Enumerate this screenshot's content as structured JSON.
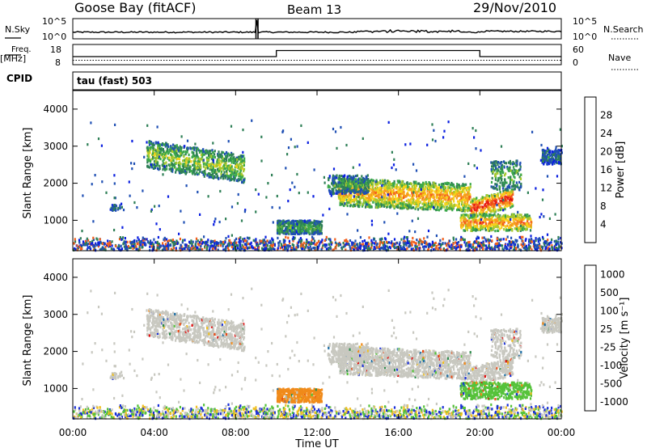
{
  "header": {
    "station": "Goose Bay (fitACF)",
    "beam": "Beam 13",
    "date": "29/Nov/2010"
  },
  "side_labels": {
    "nsky": "N.Sky",
    "nsearch": "N.Search",
    "freq": "Freq.",
    "freq_unit": "[MHz]",
    "nave": "Nave",
    "cpid": "CPID",
    "cpid_value": "tau (fast) 503"
  },
  "noise_axis": {
    "left_ticks": [
      "10^5",
      "10^0"
    ],
    "right_ticks": [
      "10^5",
      "10^0"
    ]
  },
  "freq_axis": {
    "left_ticks": [
      "18",
      "8"
    ],
    "right_ticks": [
      "60",
      "0"
    ]
  },
  "colors": {
    "power": [
      "#0a1fe0",
      "#1f4fb4",
      "#2e7f56",
      "#3aa84a",
      "#a5c82e",
      "#f7d21a",
      "#f79a1e",
      "#f25f1c",
      "#e81d14",
      "#e01010"
    ],
    "velocity": [
      "#1a2fd8",
      "#1e6fa6",
      "#2c8a4a",
      "#55c23a",
      "#c8c8c0",
      "#f0c022",
      "#f08a1a",
      "#ea4a14",
      "#e01010"
    ]
  },
  "chart_data": [
    {
      "type": "line",
      "name": "noise",
      "series": [
        {
          "name": "N.Sky",
          "description_points": [
            [
              0,
              1.2
            ],
            [
              9,
              1.3
            ],
            [
              9.02,
              5
            ],
            [
              9.1,
              0.5
            ],
            [
              10,
              1.2
            ],
            [
              20,
              1.2
            ],
            [
              20.05,
              1.6
            ],
            [
              24,
              1.2
            ]
          ]
        },
        {
          "name": "N.Search",
          "description_points": [
            [
              0,
              1.1
            ],
            [
              24,
              1.1
            ]
          ]
        }
      ],
      "x_range": [
        0,
        24
      ]
    },
    {
      "type": "line",
      "name": "frequency",
      "series": [
        {
          "name": "Freq.",
          "points": [
            [
              0,
              12
            ],
            [
              10,
              12
            ],
            [
              10,
              15
            ],
            [
              20,
              15
            ],
            [
              20,
              12
            ],
            [
              24,
              12
            ]
          ]
        },
        {
          "name": "Nave",
          "points": [
            [
              0,
              10
            ],
            [
              24,
              10
            ]
          ]
        }
      ],
      "y_range_left": [
        8,
        18
      ],
      "y_range_right": [
        0,
        60
      ]
    },
    {
      "type": "heatmap",
      "name": "power",
      "ylabel": "Slant Range [km]",
      "xlabel": "Time UT",
      "x_ticks": [
        "00:00",
        "04:00",
        "08:00",
        "12:00",
        "16:00",
        "20:00",
        "00:00"
      ],
      "y_ticks": [
        1000,
        2000,
        3000,
        4000
      ],
      "ylim": [
        180,
        4500
      ],
      "colorbar": {
        "label": "Power [dB]",
        "ticks": [
          4,
          8,
          12,
          16,
          20,
          24,
          28
        ]
      },
      "regions": [
        {
          "t0": 3.6,
          "t1": 8.4,
          "r0": 2200,
          "r1": 2900,
          "level": 0.45
        },
        {
          "t0": 10.0,
          "t1": 12.2,
          "r0": 620,
          "r1": 1000,
          "level": 0.35
        },
        {
          "t0": 13.0,
          "t1": 19.5,
          "r0": 1300,
          "r1": 2000,
          "level": 0.7
        },
        {
          "t0": 19.5,
          "t1": 21.5,
          "r0": 1200,
          "r1": 1600,
          "level": 0.9
        },
        {
          "t0": 19.0,
          "t1": 22.5,
          "r0": 700,
          "r1": 1100,
          "level": 0.75
        },
        {
          "t0": 23.0,
          "t1": 24.0,
          "r0": 2500,
          "r1": 2900,
          "level": 0.2
        }
      ]
    },
    {
      "type": "heatmap",
      "name": "velocity",
      "ylabel": "Slant Range [km]",
      "xlabel": "Time UT",
      "x_ticks": [
        "00:00",
        "04:00",
        "08:00",
        "12:00",
        "16:00",
        "20:00",
        "00:00"
      ],
      "y_ticks": [
        1000,
        2000,
        3000,
        4000
      ],
      "ylim": [
        180,
        4500
      ],
      "colorbar": {
        "label": "Velocity [m s⁻¹]",
        "ticks": [
          1000,
          500,
          100,
          25,
          -25,
          -100,
          -500,
          -1000
        ]
      }
    }
  ]
}
